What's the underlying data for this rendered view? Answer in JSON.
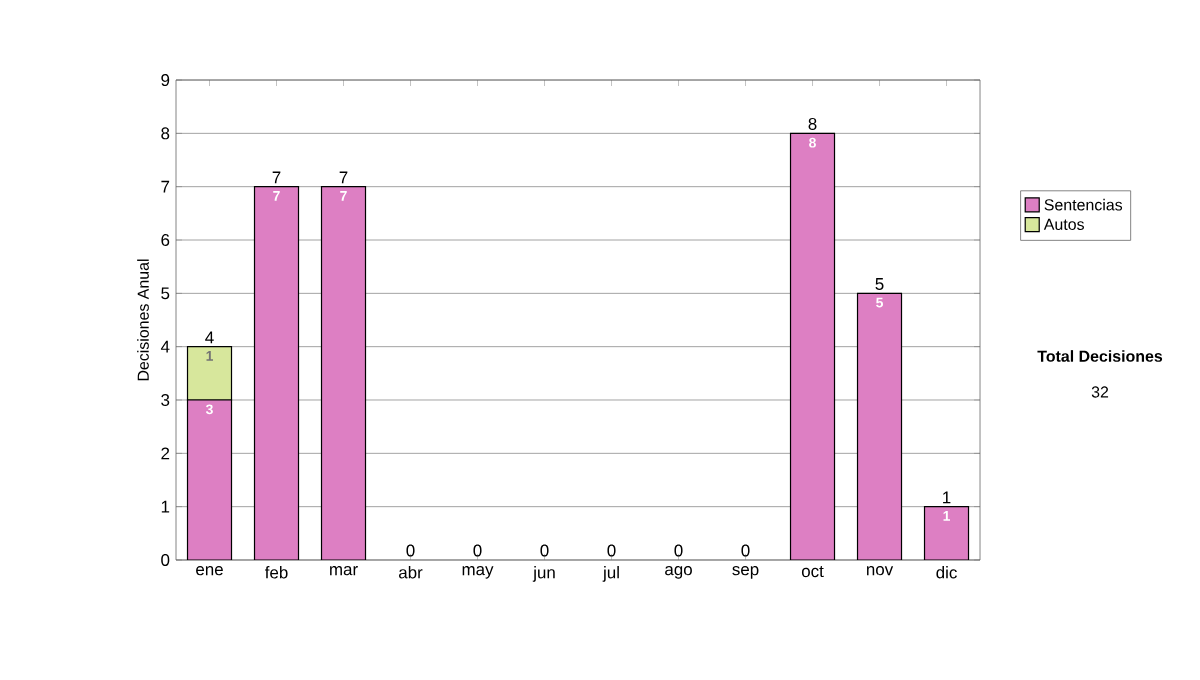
{
  "chart_data": {
    "type": "bar",
    "stacked": true,
    "ylabel": "Decisiones Anual",
    "categories": [
      "ene",
      "feb",
      "mar",
      "abr",
      "may",
      "jun",
      "jul",
      "ago",
      "sep",
      "oct",
      "nov",
      "dic"
    ],
    "series": [
      {
        "name": "Sentencias",
        "color": "#dd7fc3",
        "values": [
          3,
          7,
          7,
          0,
          0,
          0,
          0,
          0,
          0,
          8,
          5,
          1
        ],
        "value_labels": [
          "3",
          "7",
          "7",
          null,
          null,
          null,
          null,
          null,
          null,
          "8",
          "5",
          "1"
        ]
      },
      {
        "name": "Autos",
        "color": "#d7e79c",
        "values": [
          1,
          0,
          0,
          0,
          0,
          0,
          0,
          0,
          0,
          0,
          0,
          0
        ],
        "value_labels": [
          "1",
          null,
          null,
          null,
          null,
          null,
          null,
          null,
          null,
          null,
          null,
          null
        ]
      }
    ],
    "totals": [
      "4",
      "7",
      "7",
      "0",
      "0",
      "0",
      "0",
      "0",
      "0",
      "8",
      "5",
      "1"
    ],
    "ylim": [
      0,
      9
    ],
    "yticks": [
      0,
      1,
      2,
      3,
      4,
      5,
      6,
      7,
      8,
      9
    ],
    "grid": "y",
    "legend": "right",
    "annotations": [
      "**Total Decisiones**",
      "32"
    ]
  }
}
